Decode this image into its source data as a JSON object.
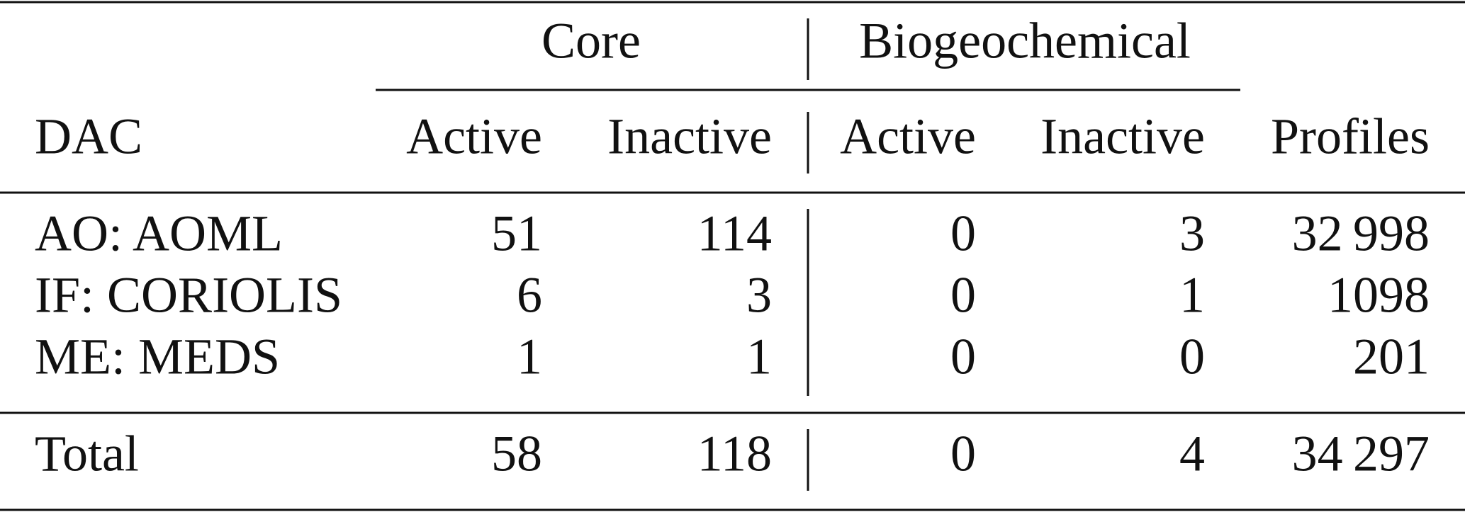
{
  "table": {
    "group_headers": [
      "Core",
      "Biogeochemical"
    ],
    "columns": [
      "DAC",
      "Active",
      "Inactive",
      "Active",
      "Inactive",
      "Profiles"
    ],
    "rows": [
      [
        "AO: AOML",
        "51",
        "114",
        "0",
        "3",
        "32 998"
      ],
      [
        "IF: CORIOLIS",
        "6",
        "3",
        "0",
        "1",
        "1098"
      ],
      [
        "ME: MEDS",
        "1",
        "1",
        "0",
        "0",
        "201"
      ]
    ],
    "total": [
      "Total",
      "58",
      "118",
      "0",
      "4",
      "34 297"
    ]
  }
}
